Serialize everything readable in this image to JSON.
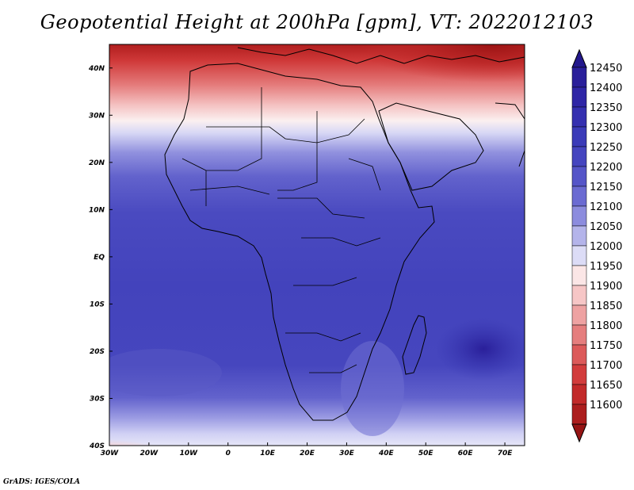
{
  "title": "Geopotential Height at 200hPa [gpm], VT: 2022012103",
  "footer": "GrADS: IGES/COLA",
  "map": {
    "lon_range": [
      -30,
      75
    ],
    "lat_range": [
      -40,
      45
    ],
    "lon_ticks": [
      {
        "value": -30,
        "label": "30W"
      },
      {
        "value": -20,
        "label": "20W"
      },
      {
        "value": -10,
        "label": "10W"
      },
      {
        "value": 0,
        "label": "0"
      },
      {
        "value": 10,
        "label": "10E"
      },
      {
        "value": 20,
        "label": "20E"
      },
      {
        "value": 30,
        "label": "30E"
      },
      {
        "value": 40,
        "label": "40E"
      },
      {
        "value": 50,
        "label": "50E"
      },
      {
        "value": 60,
        "label": "60E"
      },
      {
        "value": 70,
        "label": "70E"
      }
    ],
    "lat_ticks": [
      {
        "value": 40,
        "label": "40N"
      },
      {
        "value": 30,
        "label": "30N"
      },
      {
        "value": 20,
        "label": "20N"
      },
      {
        "value": 10,
        "label": "10N"
      },
      {
        "value": 0,
        "label": "EQ"
      },
      {
        "value": -10,
        "label": "10S"
      },
      {
        "value": -20,
        "label": "20S"
      },
      {
        "value": -30,
        "label": "30S"
      },
      {
        "value": -40,
        "label": "40S"
      }
    ]
  },
  "colorbar": {
    "levels": [
      {
        "label": "12450",
        "color": "#2a1f9a"
      },
      {
        "label": "12400",
        "color": "#2f26a6"
      },
      {
        "label": "12350",
        "color": "#3530b0"
      },
      {
        "label": "12300",
        "color": "#3b3bb8"
      },
      {
        "label": "12250",
        "color": "#4545bf"
      },
      {
        "label": "12200",
        "color": "#5555c8"
      },
      {
        "label": "12150",
        "color": "#6b6bd2"
      },
      {
        "label": "12100",
        "color": "#8c8cde"
      },
      {
        "label": "12050",
        "color": "#b4b4ea"
      },
      {
        "label": "12000",
        "color": "#dcdcf6"
      },
      {
        "label": "11950",
        "color": "#fbe6e6"
      },
      {
        "label": "11900",
        "color": "#f6c6c6"
      },
      {
        "label": "11850",
        "color": "#eea2a2"
      },
      {
        "label": "11800",
        "color": "#e57e7e"
      },
      {
        "label": "11750",
        "color": "#dc5a5a"
      },
      {
        "label": "11700",
        "color": "#d23c3c"
      },
      {
        "label": "11650",
        "color": "#c22a2a"
      },
      {
        "label": "11600",
        "color": "#ac1e1e"
      }
    ],
    "top_color": "#23188c",
    "bottom_color": "#961414"
  }
}
